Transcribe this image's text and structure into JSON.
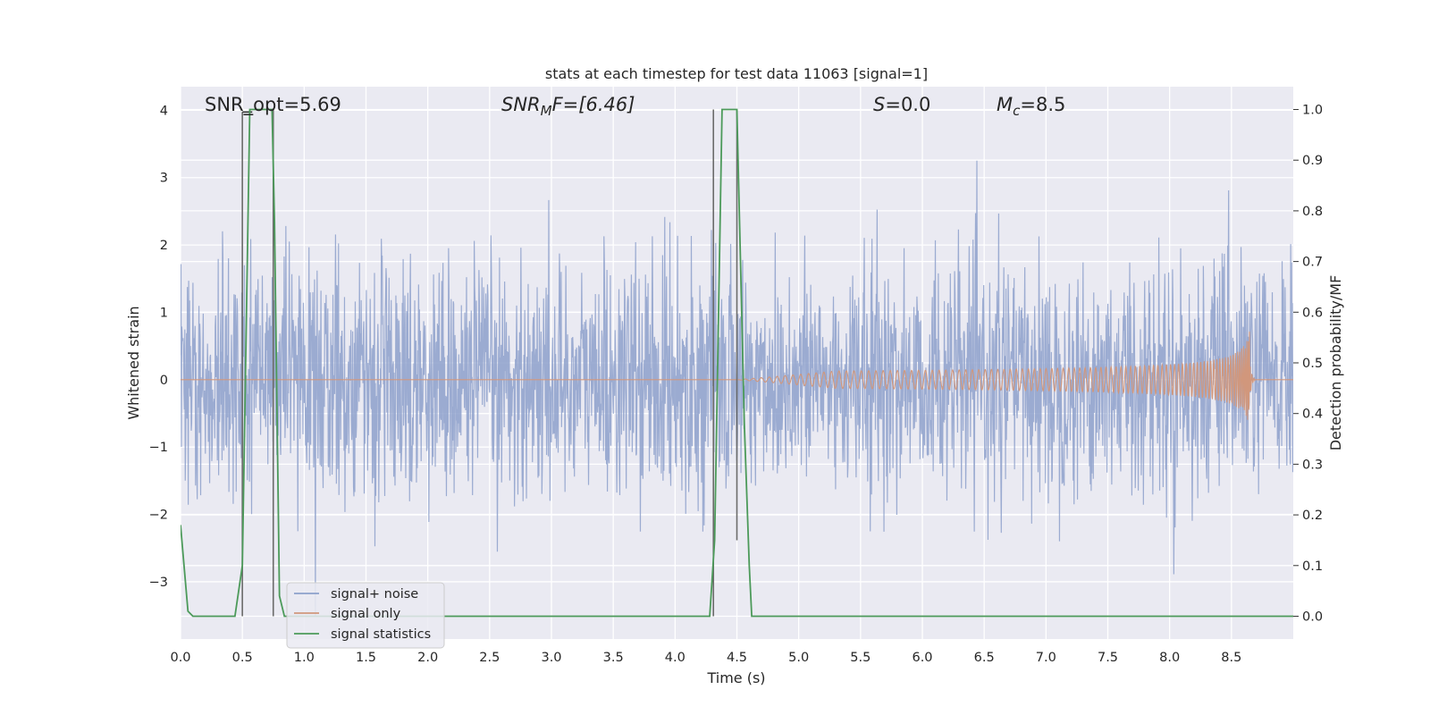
{
  "chart_data": {
    "type": "line",
    "title": "stats at each timestep for test data 11063 [signal=1]",
    "xlabel": "Time (s)",
    "ylabel": "Whitened strain",
    "y2label": "Detection probability/MF",
    "xlim": [
      0.0,
      9.0
    ],
    "ylim": [
      -3.85,
      4.35
    ],
    "y2lim": [
      -0.045,
      1.045
    ],
    "x_ticks": [
      0.0,
      0.5,
      1.0,
      1.5,
      2.0,
      2.5,
      3.0,
      3.5,
      4.0,
      4.5,
      5.0,
      5.5,
      6.0,
      6.5,
      7.0,
      7.5,
      8.0,
      8.5
    ],
    "y_ticks": [
      -3,
      -2,
      -1,
      0,
      1,
      2,
      3,
      4
    ],
    "y2_ticks": [
      0.0,
      0.1,
      0.2,
      0.3,
      0.4,
      0.5,
      0.6,
      0.7,
      0.8,
      0.9,
      1.0
    ],
    "grid": true,
    "legend_position": "lower-left",
    "annotations": {
      "snr_opt": "SNR_opt=5.69",
      "snr_mf_main": "SNR",
      "snr_mf_sub": "M",
      "snr_mf_rest": "F=[6.46]",
      "s_main": "S",
      "s_rest": "=0.0",
      "mc_main": "M",
      "mc_sub": "c",
      "mc_rest": "=8.5"
    },
    "series": [
      {
        "name": "signal+ noise",
        "color": "#8da0cb",
        "description_kind": "noisy strain",
        "std": 0.85,
        "extreme_max": 4.0,
        "extreme_min": -3.5
      },
      {
        "name": "signal only",
        "color": "#d1977c",
        "kind": "chirp",
        "start": 4.5,
        "merger": 8.65,
        "peak_amplitude": 0.78
      },
      {
        "name": "signal statistics",
        "color": "#4c9a5a",
        "axis": "y2",
        "x": [
          0.0,
          0.06,
          0.1,
          0.44,
          0.5,
          0.56,
          0.58,
          0.62,
          0.74,
          0.76,
          0.8,
          0.84,
          0.9,
          4.28,
          4.32,
          4.38,
          4.42,
          4.5,
          4.56,
          4.6,
          4.62,
          9.0
        ],
        "values": [
          0.18,
          0.01,
          0.0,
          0.0,
          0.1,
          1.0,
          1.0,
          1.0,
          1.0,
          0.78,
          0.04,
          0.0,
          0.0,
          0.0,
          0.15,
          1.0,
          1.0,
          1.0,
          0.38,
          0.1,
          0.0,
          0.0
        ]
      }
    ],
    "vertical_lines": [
      {
        "x": 0.5,
        "y2_from": 0.0,
        "y2_to": 0.995,
        "color": "#6b6b6b"
      },
      {
        "x": 0.75,
        "y2_from": 0.0,
        "y2_to": 1.0,
        "color": "#6b6b6b"
      },
      {
        "x": 4.31,
        "y2_from": 0.0,
        "y2_to": 1.0,
        "color": "#6b6b6b"
      },
      {
        "x": 4.5,
        "y2_from": 0.15,
        "y2_to": 1.0,
        "color": "#6b6b6b"
      }
    ],
    "detection_bar": {
      "x_from": 0.5,
      "x_to": 0.58,
      "y2": 0.995
    }
  }
}
